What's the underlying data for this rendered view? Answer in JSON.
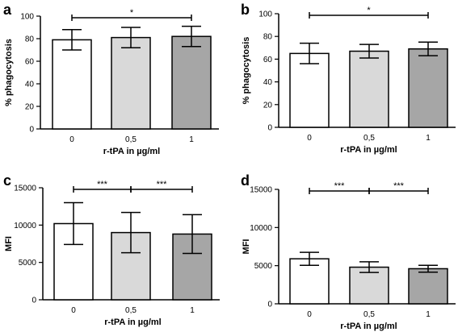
{
  "chart_data": [
    {
      "panel": "a",
      "type": "bar",
      "categories": [
        "0",
        "0,5",
        "1"
      ],
      "values": [
        79,
        81,
        82
      ],
      "errors": [
        9,
        9,
        9
      ],
      "colors": [
        "#ffffff",
        "#d9d9d9",
        "#a6a6a6"
      ],
      "ylabel": "% phagocytosis",
      "xlabel": "r-tPA in µg/ml",
      "ylim": [
        0,
        100
      ],
      "yticks": [
        "0",
        "20",
        "40",
        "60",
        "80",
        "100"
      ],
      "significance": [
        {
          "from": 0,
          "to": 2,
          "label": "*"
        }
      ]
    },
    {
      "panel": "b",
      "type": "bar",
      "categories": [
        "0",
        "0,5",
        "1"
      ],
      "values": [
        65,
        67,
        69
      ],
      "errors": [
        9,
        6,
        6
      ],
      "colors": [
        "#ffffff",
        "#d9d9d9",
        "#a6a6a6"
      ],
      "ylabel": "% phagocytosis",
      "xlabel": "r-tPA in µg/ml",
      "ylim": [
        0,
        100
      ],
      "yticks": [
        "0",
        "20",
        "40",
        "60",
        "80",
        "100"
      ],
      "significance": [
        {
          "from": 0,
          "to": 2,
          "label": "*"
        }
      ]
    },
    {
      "panel": "c",
      "type": "bar",
      "categories": [
        "0",
        "0,5",
        "1"
      ],
      "values": [
        10200,
        9000,
        8800
      ],
      "errors": [
        2800,
        2700,
        2600
      ],
      "colors": [
        "#ffffff",
        "#d9d9d9",
        "#a6a6a6"
      ],
      "ylabel": "MFI",
      "xlabel": "r-tPA in µg/ml",
      "ylim": [
        0,
        15000
      ],
      "yticks": [
        "0",
        "5000",
        "10000",
        "15000"
      ],
      "significance": [
        {
          "from": 0,
          "to": 1,
          "label": "***"
        },
        {
          "from": 1,
          "to": 2,
          "label": "***"
        }
      ]
    },
    {
      "panel": "d",
      "type": "bar",
      "categories": [
        "0",
        "0,5",
        "1"
      ],
      "values": [
        5900,
        4800,
        4600
      ],
      "errors": [
        850,
        700,
        450
      ],
      "colors": [
        "#ffffff",
        "#d9d9d9",
        "#a6a6a6"
      ],
      "ylabel": "MFI",
      "xlabel": "r-tPA in µg/ml",
      "ylim": [
        0,
        15000
      ],
      "yticks": [
        "0",
        "5000",
        "10000",
        "15000"
      ],
      "significance": [
        {
          "from": 0,
          "to": 1,
          "label": "***"
        },
        {
          "from": 1,
          "to": 2,
          "label": "***"
        }
      ]
    }
  ]
}
